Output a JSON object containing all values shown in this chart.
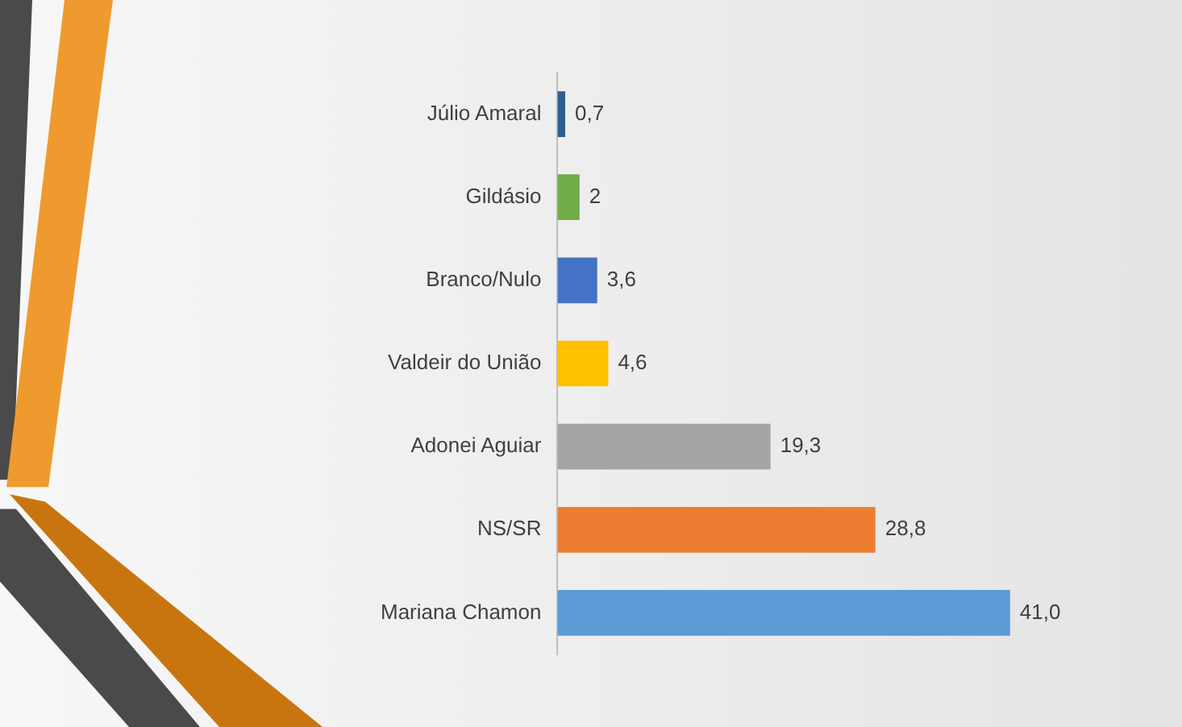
{
  "chart_data": {
    "type": "bar",
    "orientation": "horizontal",
    "categories": [
      "Júlio Amaral",
      "Gildásio",
      "Branco/Nulo",
      "Valdeir do União",
      "Adonei Aguiar",
      "NS/SR",
      "Mariana Chamon"
    ],
    "values": [
      0.7,
      2,
      3.6,
      4.6,
      19.3,
      28.8,
      41.0
    ],
    "colors": [
      "#2e5f8f",
      "#70ad47",
      "#4472c4",
      "#ffc000",
      "#a5a5a5",
      "#ed7d31",
      "#5b9bd5"
    ],
    "value_labels": [
      "0,7",
      "2",
      "3,6",
      "4,6",
      "19,3",
      "28,8",
      "41,0"
    ],
    "legend": false,
    "tick_labels": "y"
  }
}
